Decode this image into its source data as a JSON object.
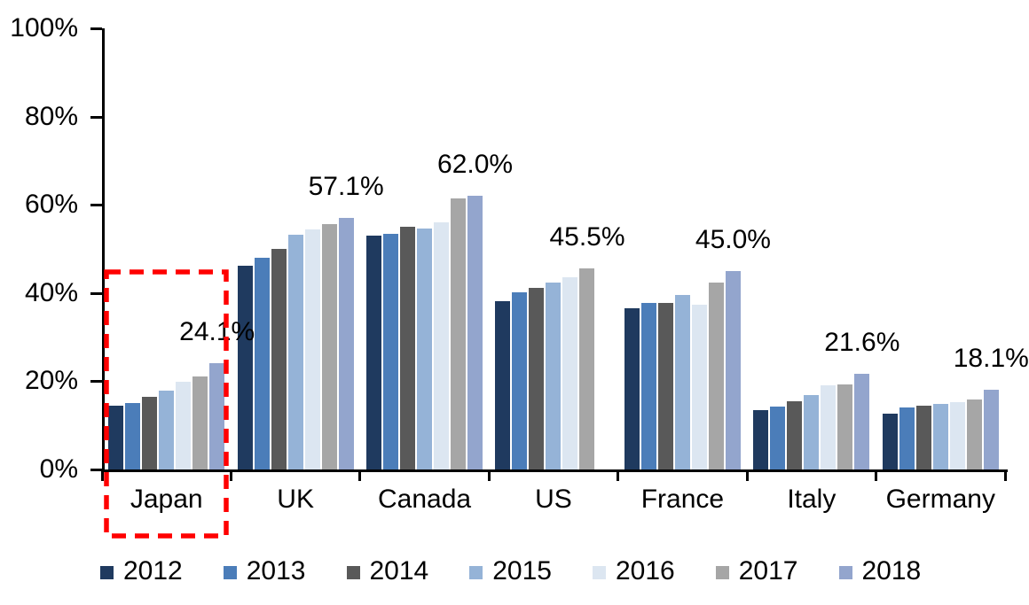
{
  "chart_data": {
    "type": "bar",
    "title": "",
    "xlabel": "",
    "ylabel": "",
    "ylim": [
      0,
      100
    ],
    "grid": false,
    "legend_position": "bottom",
    "axis_color": "#000000",
    "categories": [
      "Japan",
      "UK",
      "Canada",
      "US",
      "France",
      "Italy",
      "Germany"
    ],
    "y_ticks": [
      "0%",
      "20%",
      "40%",
      "60%",
      "80%",
      "100%"
    ],
    "series": [
      {
        "name": "2012",
        "color": "#1F3A5F",
        "values": [
          14.5,
          46.2,
          53.0,
          38.2,
          36.5,
          13.4,
          12.6
        ]
      },
      {
        "name": "2013",
        "color": "#4B7DB9",
        "values": [
          15.0,
          47.9,
          53.4,
          40.1,
          37.7,
          14.2,
          14.0
        ]
      },
      {
        "name": "2014",
        "color": "#595959",
        "values": [
          16.5,
          50.0,
          55.0,
          41.2,
          37.7,
          15.4,
          14.4
        ]
      },
      {
        "name": "2015",
        "color": "#95B3D7",
        "values": [
          17.8,
          53.2,
          54.6,
          42.3,
          39.5,
          16.8,
          14.8
        ]
      },
      {
        "name": "2016",
        "color": "#DCE6F1",
        "values": [
          19.8,
          54.5,
          56.0,
          43.6,
          37.4,
          19.0,
          15.2
        ]
      },
      {
        "name": "2017",
        "color": "#A6A6A6",
        "values": [
          21.0,
          55.6,
          61.5,
          45.5,
          42.4,
          19.3,
          15.9
        ]
      },
      {
        "name": "2018",
        "color": "#93A5CD",
        "values": [
          24.1,
          57.1,
          62.0,
          null,
          45.0,
          21.6,
          18.1
        ]
      }
    ],
    "data_labels": [
      "24.1%",
      "57.1%",
      "62.0%",
      "45.5%",
      "45.0%",
      "21.6%",
      "18.1%"
    ],
    "annotation": {
      "type": "dashed-box",
      "target": "Japan",
      "color": "#FF0000"
    }
  }
}
